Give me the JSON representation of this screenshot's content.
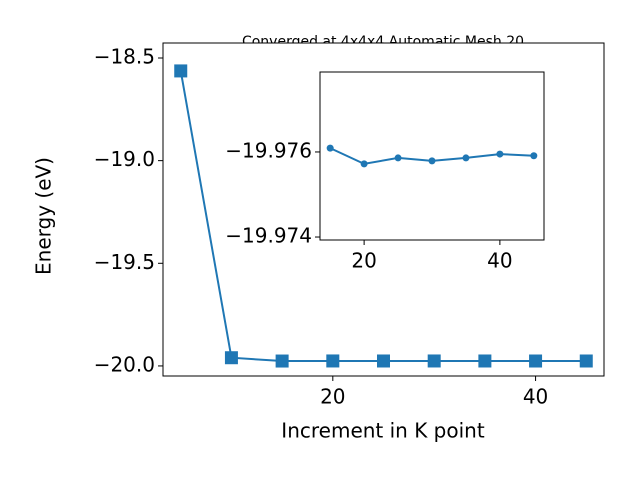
{
  "chart_data": [
    {
      "type": "line",
      "title": "Converged at 4x4x4 Automatic Mesh 20",
      "x_label": "Increment in K point",
      "y_label": "Energy (eV)",
      "x": [
        5,
        10,
        15,
        20,
        25,
        30,
        35,
        40,
        45
      ],
      "series": [
        {
          "name": "Energy",
          "color": "#1f77b4",
          "marker": "square",
          "values": [
            -18.563,
            -19.96,
            -19.97609,
            -19.97572,
            -19.97586,
            -19.97579,
            -19.97586,
            -19.97595,
            -19.97591
          ]
        }
      ],
      "xlim": [
        3.25,
        46.75
      ],
      "xticks": [
        20,
        40
      ],
      "ylim": [
        -20.049,
        -18.427
      ],
      "yticks": [
        {
          "value": -20.0,
          "label": "−20.0"
        },
        {
          "value": -19.5,
          "label": "−19.5"
        },
        {
          "value": -19.0,
          "label": "−19.0"
        },
        {
          "value": -18.5,
          "label": "−18.5"
        }
      ]
    },
    {
      "type": "line",
      "x": [
        15,
        20,
        25,
        30,
        35,
        40,
        45
      ],
      "series": [
        {
          "name": "Energy",
          "color": "#1f77b4",
          "marker": "circle",
          "values": [
            -19.97609,
            -19.97572,
            -19.97586,
            -19.97579,
            -19.97586,
            -19.97595,
            -19.97591
          ]
        }
      ],
      "xlim": [
        13.5,
        46.5
      ],
      "xticks": [
        20,
        40
      ],
      "ylim": [
        -19.97393,
        -19.97788
      ],
      "yticks": [
        {
          "value": -19.976,
          "label": "−19.976"
        },
        {
          "value": -19.974,
          "label": "−19.974"
        }
      ]
    }
  ]
}
